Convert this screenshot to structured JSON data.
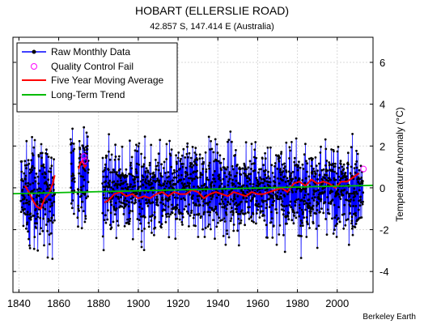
{
  "chart_data": {
    "type": "line",
    "title": "HOBART (ELLERSLIE ROAD)",
    "subtitle": "42.857 S, 147.414 E (Australia)",
    "ylabel": "Temperature Anomaly (°C)",
    "xlabel": "",
    "credit": "Berkeley Earth",
    "xlim": [
      1837,
      2018
    ],
    "ylim": [
      -5,
      7.2
    ],
    "x_ticks": [
      1840,
      1860,
      1880,
      1900,
      1920,
      1940,
      1960,
      1980,
      2000
    ],
    "x_tick_labels": [
      "1840",
      "1860",
      "1880",
      "1900",
      "1920",
      "1940",
      "1960",
      "1980",
      "2000"
    ],
    "y_ticks": [
      -4,
      -2,
      0,
      2,
      4,
      6
    ],
    "y_tick_labels": [
      "-4",
      "-2",
      "0",
      "2",
      "4",
      "6"
    ],
    "grid": true,
    "legend_position": "top-left",
    "colors": {
      "raw": "#0000ff",
      "raw_marker": "#000000",
      "qc_fail": "#ff00ff",
      "moving_avg": "#ff0000",
      "trend": "#00bb00"
    },
    "legend": [
      {
        "key": "raw",
        "label": "Raw Monthly Data"
      },
      {
        "key": "qc",
        "label": "Quality Control Fail"
      },
      {
        "key": "ma",
        "label": "Five Year Moving Average"
      },
      {
        "key": "trend",
        "label": "Long-Term Trend"
      }
    ],
    "raw_segments": [
      {
        "start": 1841.0,
        "end": 1858.0,
        "amplitude": 1.9,
        "offset": -0.2
      },
      {
        "start": 1866.0,
        "end": 1868.0,
        "amplitude": 1.7,
        "offset": 0.6
      },
      {
        "start": 1869.5,
        "end": 1875.0,
        "amplitude": 1.6,
        "offset": 0.4
      },
      {
        "start": 1882.0,
        "end": 2013.0,
        "amplitude": 1.6,
        "offset": -0.1
      }
    ],
    "qc_fail_points": [
      {
        "x": 1872.7,
        "y": 1.5
      },
      {
        "x": 1873.0,
        "y": 1.3
      },
      {
        "x": 2013.2,
        "y": 0.9
      }
    ],
    "moving_average": [
      {
        "x": [
          1843,
          1845,
          1847,
          1849,
          1851,
          1853,
          1855,
          1857,
          1858
        ],
        "y": [
          0.1,
          -0.2,
          -0.6,
          -0.9,
          -1.0,
          -0.5,
          -0.3,
          0.2,
          0.6
        ]
      },
      {
        "x": [
          1870,
          1871,
          1872,
          1873,
          1874
        ],
        "y": [
          0.9,
          1.2,
          1.3,
          1.0,
          1.1
        ]
      },
      {
        "x": [
          1883,
          1885,
          1888,
          1891,
          1894,
          1897,
          1900,
          1903,
          1906,
          1909,
          1912,
          1915,
          1918,
          1921,
          1924,
          1927,
          1930,
          1933,
          1936,
          1939,
          1942,
          1945,
          1948,
          1951,
          1954,
          1957,
          1960,
          1963,
          1966,
          1969,
          1972,
          1975,
          1978,
          1981,
          1984,
          1987,
          1990,
          1993,
          1996,
          1999,
          2002,
          2005,
          2008,
          2011
        ],
        "y": [
          -0.7,
          -0.6,
          -0.3,
          -0.2,
          -0.4,
          -0.3,
          -0.5,
          -0.4,
          -0.5,
          -0.3,
          -0.2,
          -0.4,
          -0.2,
          -0.3,
          -0.3,
          -0.1,
          -0.2,
          -0.5,
          -0.3,
          -0.2,
          -0.3,
          -0.4,
          -0.2,
          -0.3,
          -0.4,
          -0.2,
          -0.3,
          -0.3,
          -0.2,
          -0.1,
          0.0,
          -0.2,
          0.2,
          0.3,
          0.1,
          0.4,
          0.2,
          0.3,
          0.2,
          0.0,
          0.3,
          0.3,
          0.5,
          0.7
        ]
      }
    ],
    "trend": {
      "x": [
        1837,
        2018
      ],
      "y": [
        -0.28,
        0.12
      ]
    }
  }
}
